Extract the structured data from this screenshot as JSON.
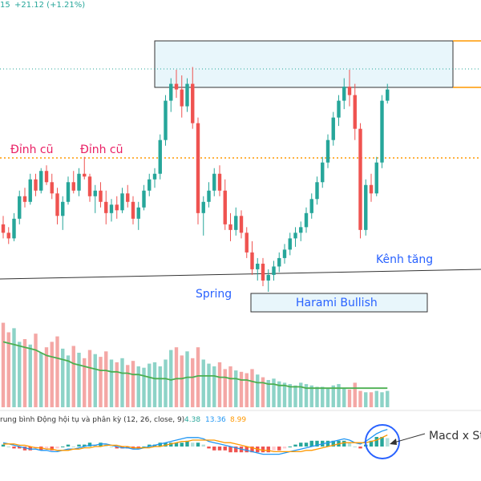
{
  "header": {
    "ticker_fragment": "15",
    "change_text": "+21.12 (+1.21%)",
    "change_color": "#26a69a"
  },
  "annotations": {
    "old_peak_1": "Đỉnh cũ",
    "old_peak_2": "Đỉnh cũ",
    "spring": "Spring",
    "harami": "Harami Bullish",
    "channel": "Kênh tăng",
    "macd_cross": "Macd x St"
  },
  "macd_legend": {
    "name": "rung bình Động hội tụ và phân kỳ (12, 26, close, 9)",
    "hist_value": "4.38",
    "macd_value": "13.36",
    "signal_value": "8.99"
  },
  "colors": {
    "up": "#26a69a",
    "down": "#ef5350",
    "vol_up": "#8dd3c7",
    "vol_down": "#f4a7a5",
    "vol_ma": "#4caf50",
    "macd_line": "#2196f3",
    "signal_line": "#ff9800",
    "resistance": "#ff9800",
    "last_price_line": "#26a69a",
    "zone_fill": "#e8f6fb",
    "label_blue": "#2962ff",
    "label_red": "#e91e63"
  },
  "chart_data": {
    "type": "candlestick",
    "candles": [
      {
        "o": 100,
        "h": 103,
        "l": 95,
        "c": 97
      },
      {
        "o": 97,
        "h": 99,
        "l": 93,
        "c": 95
      },
      {
        "o": 95,
        "h": 104,
        "l": 94,
        "c": 102
      },
      {
        "o": 102,
        "h": 112,
        "l": 100,
        "c": 110
      },
      {
        "o": 110,
        "h": 113,
        "l": 106,
        "c": 108
      },
      {
        "o": 108,
        "h": 118,
        "l": 107,
        "c": 116
      },
      {
        "o": 116,
        "h": 118,
        "l": 110,
        "c": 112
      },
      {
        "o": 112,
        "h": 120,
        "l": 111,
        "c": 119
      },
      {
        "o": 119,
        "h": 121,
        "l": 114,
        "c": 115
      },
      {
        "o": 115,
        "h": 118,
        "l": 109,
        "c": 111
      },
      {
        "o": 111,
        "h": 113,
        "l": 100,
        "c": 103
      },
      {
        "o": 103,
        "h": 110,
        "l": 98,
        "c": 108
      },
      {
        "o": 108,
        "h": 117,
        "l": 107,
        "c": 115
      },
      {
        "o": 115,
        "h": 119,
        "l": 111,
        "c": 112
      },
      {
        "o": 112,
        "h": 120,
        "l": 110,
        "c": 118
      },
      {
        "o": 118,
        "h": 124,
        "l": 116,
        "c": 117
      },
      {
        "o": 117,
        "h": 118,
        "l": 108,
        "c": 110
      },
      {
        "o": 110,
        "h": 114,
        "l": 104,
        "c": 112
      },
      {
        "o": 112,
        "h": 115,
        "l": 106,
        "c": 108
      },
      {
        "o": 108,
        "h": 112,
        "l": 100,
        "c": 104
      },
      {
        "o": 104,
        "h": 109,
        "l": 101,
        "c": 107
      },
      {
        "o": 107,
        "h": 110,
        "l": 102,
        "c": 105
      },
      {
        "o": 105,
        "h": 113,
        "l": 104,
        "c": 111
      },
      {
        "o": 111,
        "h": 114,
        "l": 106,
        "c": 108
      },
      {
        "o": 108,
        "h": 110,
        "l": 100,
        "c": 102
      },
      {
        "o": 102,
        "h": 108,
        "l": 98,
        "c": 106
      },
      {
        "o": 106,
        "h": 114,
        "l": 105,
        "c": 112
      },
      {
        "o": 112,
        "h": 118,
        "l": 110,
        "c": 116
      },
      {
        "o": 116,
        "h": 120,
        "l": 113,
        "c": 118
      },
      {
        "o": 118,
        "h": 132,
        "l": 116,
        "c": 130
      },
      {
        "o": 130,
        "h": 146,
        "l": 128,
        "c": 144
      },
      {
        "o": 144,
        "h": 152,
        "l": 140,
        "c": 150
      },
      {
        "o": 150,
        "h": 155,
        "l": 145,
        "c": 148
      },
      {
        "o": 148,
        "h": 153,
        "l": 138,
        "c": 142
      },
      {
        "o": 142,
        "h": 152,
        "l": 140,
        "c": 150
      },
      {
        "o": 150,
        "h": 156,
        "l": 134,
        "c": 136
      },
      {
        "o": 136,
        "h": 138,
        "l": 100,
        "c": 104
      },
      {
        "o": 104,
        "h": 110,
        "l": 96,
        "c": 108
      },
      {
        "o": 108,
        "h": 115,
        "l": 106,
        "c": 112
      },
      {
        "o": 112,
        "h": 120,
        "l": 110,
        "c": 118
      },
      {
        "o": 118,
        "h": 121,
        "l": 110,
        "c": 112
      },
      {
        "o": 112,
        "h": 116,
        "l": 98,
        "c": 100
      },
      {
        "o": 100,
        "h": 104,
        "l": 94,
        "c": 98
      },
      {
        "o": 98,
        "h": 106,
        "l": 96,
        "c": 103
      },
      {
        "o": 103,
        "h": 105,
        "l": 95,
        "c": 97
      },
      {
        "o": 97,
        "h": 99,
        "l": 88,
        "c": 90
      },
      {
        "o": 90,
        "h": 94,
        "l": 82,
        "c": 84
      },
      {
        "o": 84,
        "h": 88,
        "l": 80,
        "c": 86
      },
      {
        "o": 86,
        "h": 88,
        "l": 78,
        "c": 80
      },
      {
        "o": 80,
        "h": 84,
        "l": 76,
        "c": 82
      },
      {
        "o": 82,
        "h": 87,
        "l": 80,
        "c": 85
      },
      {
        "o": 85,
        "h": 90,
        "l": 83,
        "c": 88
      },
      {
        "o": 88,
        "h": 93,
        "l": 86,
        "c": 91
      },
      {
        "o": 91,
        "h": 97,
        "l": 89,
        "c": 95
      },
      {
        "o": 95,
        "h": 99,
        "l": 92,
        "c": 97
      },
      {
        "o": 97,
        "h": 101,
        "l": 94,
        "c": 99
      },
      {
        "o": 99,
        "h": 106,
        "l": 97,
        "c": 104
      },
      {
        "o": 104,
        "h": 111,
        "l": 102,
        "c": 109
      },
      {
        "o": 109,
        "h": 117,
        "l": 107,
        "c": 115
      },
      {
        "o": 115,
        "h": 124,
        "l": 113,
        "c": 122
      },
      {
        "o": 122,
        "h": 132,
        "l": 120,
        "c": 130
      },
      {
        "o": 130,
        "h": 140,
        "l": 128,
        "c": 138
      },
      {
        "o": 138,
        "h": 146,
        "l": 135,
        "c": 144
      },
      {
        "o": 144,
        "h": 152,
        "l": 141,
        "c": 149
      },
      {
        "o": 149,
        "h": 155,
        "l": 142,
        "c": 146
      },
      {
        "o": 146,
        "h": 150,
        "l": 130,
        "c": 134
      },
      {
        "o": 134,
        "h": 136,
        "l": 95,
        "c": 98
      },
      {
        "o": 98,
        "h": 116,
        "l": 96,
        "c": 114
      },
      {
        "o": 114,
        "h": 118,
        "l": 108,
        "c": 111
      },
      {
        "o": 111,
        "h": 124,
        "l": 110,
        "c": 122
      },
      {
        "o": 122,
        "h": 146,
        "l": 120,
        "c": 144
      },
      {
        "o": 144,
        "h": 150,
        "l": 143,
        "c": 148
      }
    ],
    "volume": [
      62,
      55,
      58,
      48,
      50,
      46,
      54,
      40,
      44,
      48,
      52,
      43,
      38,
      45,
      40,
      36,
      42,
      39,
      37,
      41,
      35,
      33,
      36,
      31,
      34,
      30,
      29,
      32,
      33,
      30,
      35,
      42,
      44,
      38,
      41,
      36,
      44,
      35,
      32,
      30,
      33,
      28,
      30,
      27,
      26,
      25,
      28,
      24,
      22,
      20,
      21,
      19,
      18,
      17,
      16,
      18,
      17,
      16,
      15,
      15,
      14,
      16,
      17,
      14,
      13,
      18,
      12,
      11,
      11,
      12,
      11,
      12
    ],
    "volume_ma": [
      48,
      47,
      46,
      45,
      44,
      43,
      42,
      40,
      38,
      37,
      36,
      35,
      34,
      32,
      31,
      30,
      29,
      28,
      27,
      27,
      26,
      26,
      25,
      25,
      24,
      24,
      23,
      22,
      21,
      21,
      21,
      20,
      21,
      21,
      22,
      22,
      23,
      23,
      23,
      23,
      22,
      22,
      21,
      21,
      20,
      20,
      19,
      18,
      18,
      17,
      17,
      16,
      16,
      15,
      15,
      15,
      14,
      14,
      14,
      14,
      14,
      14,
      14,
      14,
      14,
      14,
      14,
      14,
      14,
      14,
      14,
      14
    ],
    "macd": [
      3,
      2,
      1,
      0,
      -1,
      -2,
      -2,
      -3,
      -3,
      -4,
      -4,
      -3,
      -2,
      -2,
      -1,
      0,
      1,
      1,
      2,
      2,
      1,
      0,
      -1,
      -1,
      -2,
      -2,
      -1,
      0,
      1,
      2,
      3,
      4,
      5,
      6,
      7,
      7,
      7,
      6,
      4,
      3,
      2,
      1,
      0,
      -1,
      -2,
      -3,
      -4,
      -5,
      -6,
      -6,
      -6,
      -6,
      -5,
      -4,
      -3,
      -2,
      -1,
      0,
      1,
      2,
      3,
      4,
      5,
      6,
      5,
      3,
      2,
      4,
      7,
      10,
      12,
      13.36
    ],
    "signal": [
      2,
      2,
      2,
      1,
      1,
      0,
      -1,
      -1,
      -2,
      -2,
      -3,
      -3,
      -3,
      -2,
      -2,
      -1,
      -1,
      0,
      0,
      1,
      1,
      1,
      0,
      0,
      -1,
      -1,
      -1,
      -1,
      0,
      0,
      1,
      2,
      3,
      4,
      4,
      5,
      5,
      5,
      5,
      5,
      4,
      3,
      3,
      2,
      1,
      0,
      -1,
      -2,
      -3,
      -3,
      -4,
      -4,
      -4,
      -4,
      -4,
      -4,
      -3,
      -3,
      -2,
      -1,
      0,
      1,
      2,
      3,
      3,
      3,
      3,
      3,
      4,
      5,
      7,
      8.99
    ],
    "price_ylim": [
      70,
      165
    ],
    "resistance_level": 125,
    "last_price": 148
  }
}
